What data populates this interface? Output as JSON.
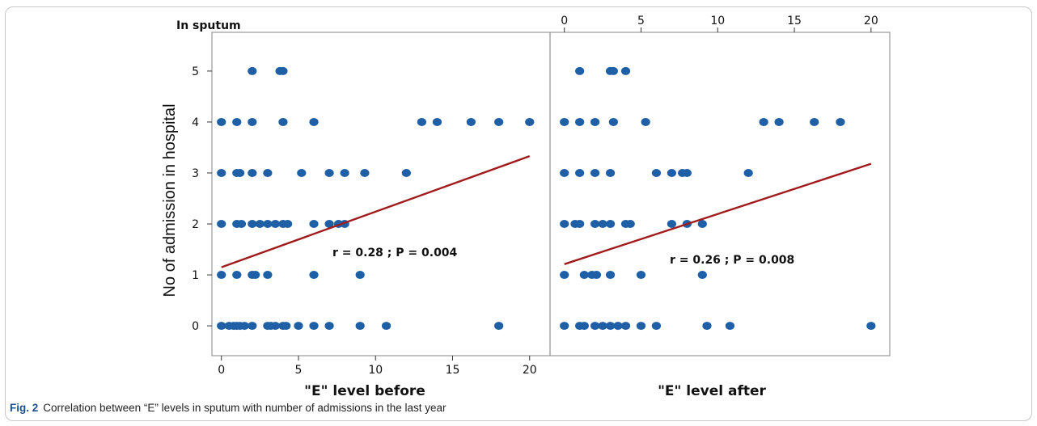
{
  "caption": {
    "fig_label": "Fig. 2",
    "text": "Correlation between “E” levels in sputum with number of admissions in the last year"
  },
  "colors": {
    "point": "#1f5fa6",
    "line": "#a01c1c",
    "axis": "#999999"
  },
  "chart_data": [
    {
      "type": "scatter",
      "panel_label": "In sputum",
      "xlabel": "\"E\" level before",
      "ylabel": "No of admission in hospital",
      "xlim": [
        -0.3,
        20.8
      ],
      "ylim": [
        -0.3,
        5.3
      ],
      "xticks": [
        0,
        5,
        10,
        15,
        20
      ],
      "yticks": [
        0,
        1,
        2,
        3,
        4,
        5
      ],
      "xticks_position": "bottom",
      "annotation": "r = 0.28 ; P = 0.004",
      "fit_line": {
        "x": [
          0,
          20
        ],
        "y": [
          1.15,
          3.33
        ]
      },
      "points": [
        [
          2,
          5
        ],
        [
          3.8,
          5
        ],
        [
          4,
          5
        ],
        [
          0,
          4
        ],
        [
          1,
          4
        ],
        [
          2,
          4
        ],
        [
          4,
          4
        ],
        [
          6,
          4
        ],
        [
          13,
          4
        ],
        [
          14,
          4
        ],
        [
          16.2,
          4
        ],
        [
          18,
          4
        ],
        [
          20,
          4
        ],
        [
          0,
          3
        ],
        [
          1,
          3
        ],
        [
          1.2,
          3
        ],
        [
          2,
          3
        ],
        [
          3,
          3
        ],
        [
          5.2,
          3
        ],
        [
          7,
          3
        ],
        [
          8,
          3
        ],
        [
          9.3,
          3
        ],
        [
          12,
          3
        ],
        [
          0,
          2
        ],
        [
          1,
          2
        ],
        [
          1.3,
          2
        ],
        [
          2,
          2
        ],
        [
          2.5,
          2
        ],
        [
          3,
          2
        ],
        [
          3.5,
          2
        ],
        [
          4,
          2
        ],
        [
          4.3,
          2
        ],
        [
          6,
          2
        ],
        [
          7,
          2
        ],
        [
          7.6,
          2
        ],
        [
          8,
          2
        ],
        [
          0,
          1
        ],
        [
          1,
          1
        ],
        [
          2,
          1
        ],
        [
          2.2,
          1
        ],
        [
          3,
          1
        ],
        [
          6,
          1
        ],
        [
          9,
          1
        ],
        [
          0,
          0
        ],
        [
          0.5,
          0
        ],
        [
          0.8,
          0
        ],
        [
          1,
          0
        ],
        [
          1.2,
          0
        ],
        [
          1.5,
          0
        ],
        [
          2,
          0
        ],
        [
          3,
          0
        ],
        [
          3.2,
          0
        ],
        [
          3.5,
          0
        ],
        [
          4,
          0
        ],
        [
          4.2,
          0
        ],
        [
          5,
          0
        ],
        [
          6,
          0
        ],
        [
          7,
          0
        ],
        [
          9,
          0
        ],
        [
          10.7,
          0
        ],
        [
          18,
          0
        ]
      ]
    },
    {
      "type": "scatter",
      "panel_label": "",
      "xlabel": "\"E\" level after",
      "ylabel": "",
      "xlim": [
        -0.3,
        20.8
      ],
      "ylim": [
        -0.3,
        5.3
      ],
      "xticks": [
        0,
        5,
        10,
        15,
        20
      ],
      "yticks": [],
      "xticks_position": "top",
      "annotation": "r = 0.26 ; P = 0.008",
      "fit_line": {
        "x": [
          0,
          20
        ],
        "y": [
          1.21,
          3.18
        ]
      },
      "points": [
        [
          1,
          5
        ],
        [
          3,
          5
        ],
        [
          3.2,
          5
        ],
        [
          4,
          5
        ],
        [
          0,
          4
        ],
        [
          1,
          4
        ],
        [
          2,
          4
        ],
        [
          3.2,
          4
        ],
        [
          5.3,
          4
        ],
        [
          13,
          4
        ],
        [
          14,
          4
        ],
        [
          16.3,
          4
        ],
        [
          18,
          4
        ],
        [
          0,
          3
        ],
        [
          1,
          3
        ],
        [
          2,
          3
        ],
        [
          3,
          3
        ],
        [
          6,
          3
        ],
        [
          7,
          3
        ],
        [
          7.7,
          3
        ],
        [
          8,
          3
        ],
        [
          12,
          3
        ],
        [
          0,
          2
        ],
        [
          0.7,
          2
        ],
        [
          1,
          2
        ],
        [
          2,
          2
        ],
        [
          2.5,
          2
        ],
        [
          3,
          2
        ],
        [
          4,
          2
        ],
        [
          4.3,
          2
        ],
        [
          7,
          2
        ],
        [
          8,
          2
        ],
        [
          9,
          2
        ],
        [
          0,
          1
        ],
        [
          1.3,
          1
        ],
        [
          1.8,
          1
        ],
        [
          2.1,
          1
        ],
        [
          3,
          1
        ],
        [
          5,
          1
        ],
        [
          9,
          1
        ],
        [
          0,
          0
        ],
        [
          1,
          0
        ],
        [
          1.3,
          0
        ],
        [
          2,
          0
        ],
        [
          2.5,
          0
        ],
        [
          3,
          0
        ],
        [
          3.5,
          0
        ],
        [
          4,
          0
        ],
        [
          5,
          0
        ],
        [
          6,
          0
        ],
        [
          9.3,
          0
        ],
        [
          10.8,
          0
        ],
        [
          20,
          0
        ]
      ]
    }
  ]
}
